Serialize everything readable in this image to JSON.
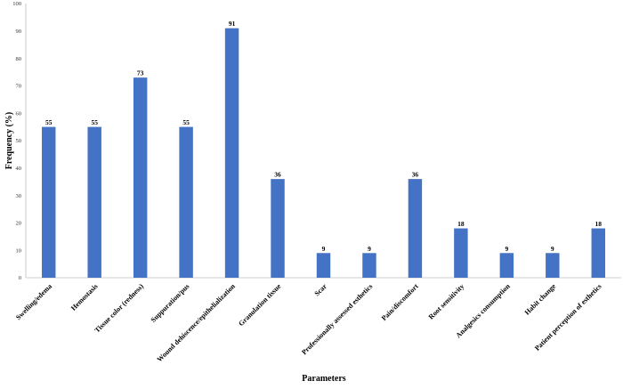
{
  "chart_data": {
    "type": "bar",
    "categories": [
      "Swelling/edema",
      "Hemostasis",
      "Tissue color (redness)",
      "Suppuration/pus",
      "Wound dehiscence/epithelialization",
      "Granulation tissue",
      "Scar",
      "Professionally assessed esthetics",
      "Pain/discomfort",
      "Root sensitivity",
      "Analgesics consumption",
      "Habit change",
      "Patient perception of esthetics"
    ],
    "values": [
      55,
      55,
      73,
      55,
      91,
      36,
      9,
      9,
      36,
      18,
      9,
      9,
      18
    ],
    "data_labels": [
      "55",
      "55",
      "73",
      "55",
      "91",
      "36",
      "9",
      "9",
      "36",
      "18",
      "9",
      "9",
      "18"
    ],
    "title": "",
    "xlabel": "Parameters",
    "ylabel": "Frequency (%)",
    "ylim": [
      0,
      100
    ],
    "yticks": [
      "0",
      "10",
      "20",
      "30",
      "40",
      "50",
      "60",
      "70",
      "80",
      "90",
      "100"
    ],
    "grid": false,
    "legend": "none",
    "bar_color": "#4472C4"
  }
}
